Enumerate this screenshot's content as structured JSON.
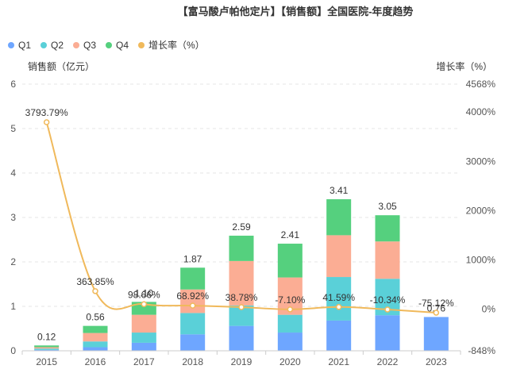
{
  "chart_data": {
    "type": "bar",
    "stacked": true,
    "title": "【富马酸卢帕他定片】【销售额】全国医院-年度趋势",
    "categories": [
      "2015",
      "2016",
      "2017",
      "2018",
      "2019",
      "2020",
      "2021",
      "2022",
      "2023"
    ],
    "series": [
      {
        "name": "Q1",
        "color": "#6ea6ff",
        "values": [
          0.02,
          0.08,
          0.18,
          0.37,
          0.56,
          0.41,
          0.68,
          0.8,
          0.76
        ]
      },
      {
        "name": "Q2",
        "color": "#5ad0d8",
        "values": [
          0.03,
          0.13,
          0.23,
          0.48,
          0.46,
          0.4,
          0.98,
          0.82,
          0.0
        ]
      },
      {
        "name": "Q3",
        "color": "#fbad94",
        "values": [
          0.03,
          0.19,
          0.4,
          0.53,
          1.0,
          0.84,
          0.94,
          0.84,
          0.0
        ]
      },
      {
        "name": "Q4",
        "color": "#55d07e",
        "values": [
          0.04,
          0.16,
          0.29,
          0.49,
          0.57,
          0.76,
          0.81,
          0.59,
          0.0
        ]
      }
    ],
    "totals": [
      "0.12",
      "0.56",
      "1.10",
      "1.87",
      "2.59",
      "2.41",
      "3.41",
      "3.05",
      "0.76"
    ],
    "growth": {
      "name": "增长率（%）",
      "color": "#f0b95b",
      "values": [
        3793.79,
        363.85,
        98.66,
        68.92,
        38.78,
        -7.1,
        41.59,
        -10.34,
        -75.12
      ],
      "labels": [
        "3793.79%",
        "363.85%",
        "98.66%",
        "68.92%",
        "38.78%",
        "-7.10%",
        "41.59%",
        "-10.34%",
        "-75.12%"
      ]
    },
    "y_left": {
      "label": "销售额（亿元）",
      "min": 0,
      "max": 6,
      "ticks": [
        "0",
        "1",
        "2",
        "3",
        "4",
        "5",
        "6"
      ]
    },
    "y_right": {
      "label": "增长率（%）",
      "min": -848,
      "max": 4568,
      "ticks": [
        "-848%",
        "0%",
        "1000%",
        "2000%",
        "3000%",
        "4000%",
        "4568%"
      ],
      "tick_values": [
        -848,
        0,
        1000,
        2000,
        3000,
        4000,
        4568
      ]
    },
    "legend_position": "top-left",
    "grid": true
  }
}
